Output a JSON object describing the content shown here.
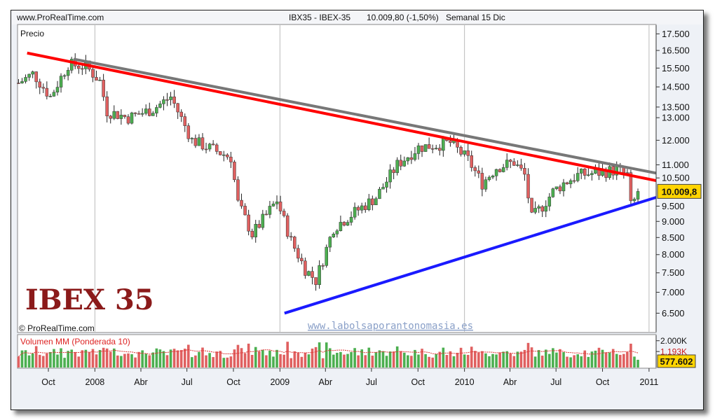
{
  "header": {
    "site": "www.ProRealTime.com",
    "instrument": "IBX35 - IBEX-35",
    "quote": "10.009,80 (-1,50%)",
    "period": "Semanal 15 Dic"
  },
  "price_panel_label": "Precio",
  "chart_title": "IBEX 35",
  "copyright": "© ProRealTime.com",
  "watermark": "www.labolsaporantonomasia.es",
  "volume_panel_label": "Volumen MM (Ponderada 10)",
  "price_badge": "10.009,8",
  "volume_badge": "577.602",
  "volume_overlap_tick": "1.193K",
  "colors": {
    "up": "#4caf50",
    "down": "#e06060",
    "red_line": "#ff0000",
    "gray_line": "#777777",
    "blue_line": "#1a1aff",
    "badge": "#ffd400"
  },
  "chart_data": {
    "type": "candlestick",
    "title": "IBEX 35",
    "y_scale": "log",
    "ylim": [
      6100,
      18000
    ],
    "yticks": [
      "17.500",
      "16.500",
      "15.500",
      "14.500",
      "13.500",
      "13.000",
      "12.000",
      "11.000",
      "10.500",
      "9.500",
      "9.000",
      "8.500",
      "8.000",
      "7.500",
      "7.000",
      "6.500"
    ],
    "ytick_values": [
      17500,
      16500,
      15500,
      14500,
      13500,
      13000,
      12000,
      11000,
      10500,
      9500,
      9000,
      8500,
      8000,
      7500,
      7000,
      6500
    ],
    "x_range": [
      "2007-08-01",
      "2011-01-15"
    ],
    "xtick_labels": [
      "Oct",
      "2008",
      "Abr",
      "Jul",
      "Oct",
      "2009",
      "Abr",
      "Jul",
      "Oct",
      "2010",
      "Abr",
      "Jul",
      "Oct",
      "2011"
    ],
    "xtick_dates": [
      "2007-10-01",
      "2008-01-01",
      "2008-04-01",
      "2008-07-01",
      "2008-10-01",
      "2009-01-01",
      "2009-04-01",
      "2009-07-01",
      "2009-10-01",
      "2010-01-01",
      "2010-04-01",
      "2010-07-01",
      "2010-10-01",
      "2011-01-01"
    ],
    "path_dates": [
      "2007-08-03",
      "2007-09-01",
      "2007-10-05",
      "2007-11-09",
      "2007-12-14",
      "2008-01-11",
      "2008-01-25",
      "2008-03-07",
      "2008-04-25",
      "2008-05-30",
      "2008-07-11",
      "2008-08-22",
      "2008-09-26",
      "2008-10-10",
      "2008-11-07",
      "2008-12-05",
      "2008-12-26",
      "2009-01-23",
      "2009-02-20",
      "2009-03-13",
      "2009-04-17",
      "2009-05-29",
      "2009-07-10",
      "2009-08-21",
      "2009-10-02",
      "2009-11-06",
      "2009-12-04",
      "2010-01-08",
      "2010-02-05",
      "2010-03-05",
      "2010-04-09",
      "2010-04-30",
      "2010-05-14",
      "2010-06-04",
      "2010-06-25",
      "2010-07-16",
      "2010-08-13",
      "2010-09-24",
      "2010-10-29",
      "2010-11-19",
      "2010-11-26",
      "2010-12-15"
    ],
    "path_closes": [
      14700,
      15200,
      14000,
      15700,
      15600,
      14800,
      13300,
      13000,
      13400,
      14000,
      12000,
      11600,
      11300,
      9600,
      8600,
      9200,
      9700,
      8400,
      7600,
      7300,
      8800,
      9300,
      9800,
      11000,
      11700,
      11800,
      11900,
      11200,
      10300,
      10900,
      11100,
      10600,
      9100,
      9500,
      10000,
      10300,
      10600,
      10700,
      10800,
      10600,
      9500,
      10009.8
    ],
    "trendlines": [
      {
        "name": "red",
        "from": [
          "2007-08-20",
          16350
        ],
        "to": [
          "2011-01-15",
          10400
        ]
      },
      {
        "name": "gray",
        "from": [
          "2007-11-20",
          16000
        ],
        "to": [
          "2011-01-15",
          10680
        ]
      },
      {
        "name": "blue",
        "from": [
          "2009-01-10",
          6500
        ],
        "to": [
          "2011-01-15",
          9800
        ]
      }
    ],
    "volume": {
      "label": "Volumen MM (Ponderada 10)",
      "ytick_labels": [
        "2.000K",
        "1.193K"
      ],
      "ytick_values": [
        2000,
        1193
      ],
      "ylim": [
        0,
        2300
      ],
      "moving_average_level": 1193,
      "last_value": 577602
    }
  }
}
